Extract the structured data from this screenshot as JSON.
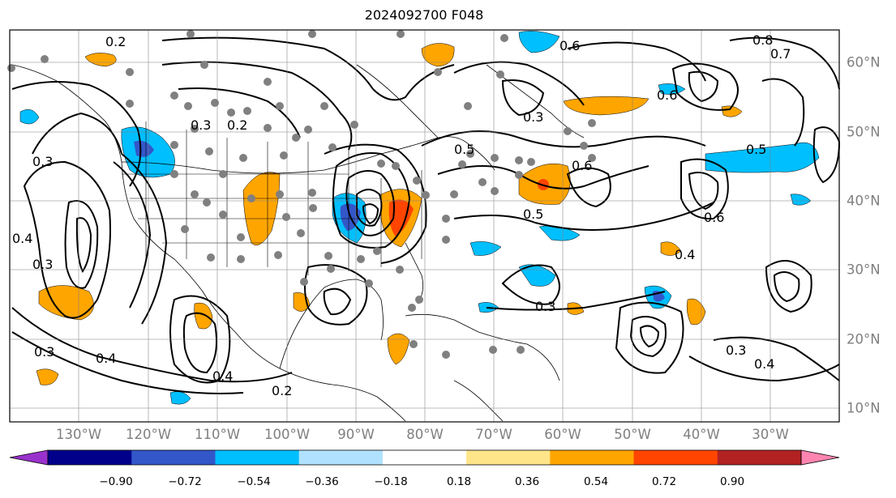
{
  "title": "2024092700 F048",
  "lon_labels": [
    "130°W",
    "120°W",
    "110°W",
    "100°W",
    "90°W",
    "80°W",
    "70°W",
    "60°W",
    "50°W",
    "40°W",
    "30°W"
  ],
  "lat_labels": [
    "60°N",
    "50°N",
    "40°N",
    "30°N",
    "20°N",
    "10°N"
  ],
  "colorbar": {
    "ticks": [
      "−0.90",
      "−0.72",
      "−0.54",
      "−0.36",
      "−0.18",
      "0.18",
      "0.36",
      "0.54",
      "0.72",
      "0.90"
    ],
    "colors": [
      "#9932cc",
      "#00008b",
      "#3357c9",
      "#00bfff",
      "#b0e2ff",
      "#ffffff",
      "#ffe58a",
      "#ffa500",
      "#ff4500",
      "#b22222",
      "#ff85b0"
    ]
  },
  "contour_labels": [
    "0.2",
    "0.3",
    "0.4",
    "0.5",
    "0.6",
    "0.7",
    "0.8"
  ],
  "colors": {
    "axis_label": "#7f7f7f",
    "grid": "#808080",
    "station": "#808080"
  }
}
